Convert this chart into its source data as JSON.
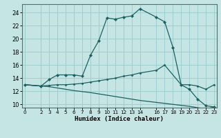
{
  "xlabel": "Humidex (Indice chaleur)",
  "bg_color": "#c5e5e5",
  "grid_color": "#9ecece",
  "line_color": "#1a6060",
  "xlim": [
    -0.3,
    23.3
  ],
  "ylim": [
    9.5,
    25.3
  ],
  "xtick_vals": [
    0,
    2,
    3,
    4,
    5,
    6,
    7,
    8,
    9,
    10,
    11,
    12,
    13,
    14,
    16,
    17,
    18,
    19,
    20,
    21,
    22,
    23
  ],
  "ytick_vals": [
    10,
    12,
    14,
    16,
    18,
    20,
    22,
    24
  ],
  "curve1_x": [
    0,
    2,
    3,
    4,
    5,
    6,
    7,
    8,
    9,
    10,
    11,
    12,
    13,
    14,
    16,
    17,
    18,
    19,
    20,
    21,
    22,
    23
  ],
  "curve1_y": [
    13,
    12.8,
    13.8,
    14.5,
    14.5,
    14.5,
    14.3,
    17.5,
    19.7,
    23.2,
    23.0,
    23.3,
    23.5,
    24.6,
    23.3,
    22.6,
    18.7,
    13.0,
    12.3,
    10.8,
    9.8,
    9.6
  ],
  "curve2_x": [
    0,
    2,
    3,
    4,
    5,
    6,
    7,
    8,
    9,
    10,
    11,
    12,
    13,
    14,
    16,
    17,
    19,
    20,
    21,
    22,
    23
  ],
  "curve2_y": [
    13,
    12.8,
    12.9,
    13.0,
    13.0,
    13.1,
    13.2,
    13.4,
    13.6,
    13.8,
    14.0,
    14.3,
    14.5,
    14.8,
    15.2,
    16.0,
    13.0,
    13.0,
    12.8,
    12.3,
    13.0
  ],
  "curve3_x": [
    0,
    2,
    3,
    4,
    5,
    6,
    8,
    10,
    12,
    14,
    16,
    18,
    20,
    21,
    22,
    23
  ],
  "curve3_y": [
    13,
    12.8,
    12.7,
    12.5,
    12.3,
    12.1,
    11.8,
    11.4,
    11.0,
    10.6,
    10.3,
    10.0,
    9.7,
    9.5,
    9.3,
    9.6
  ]
}
